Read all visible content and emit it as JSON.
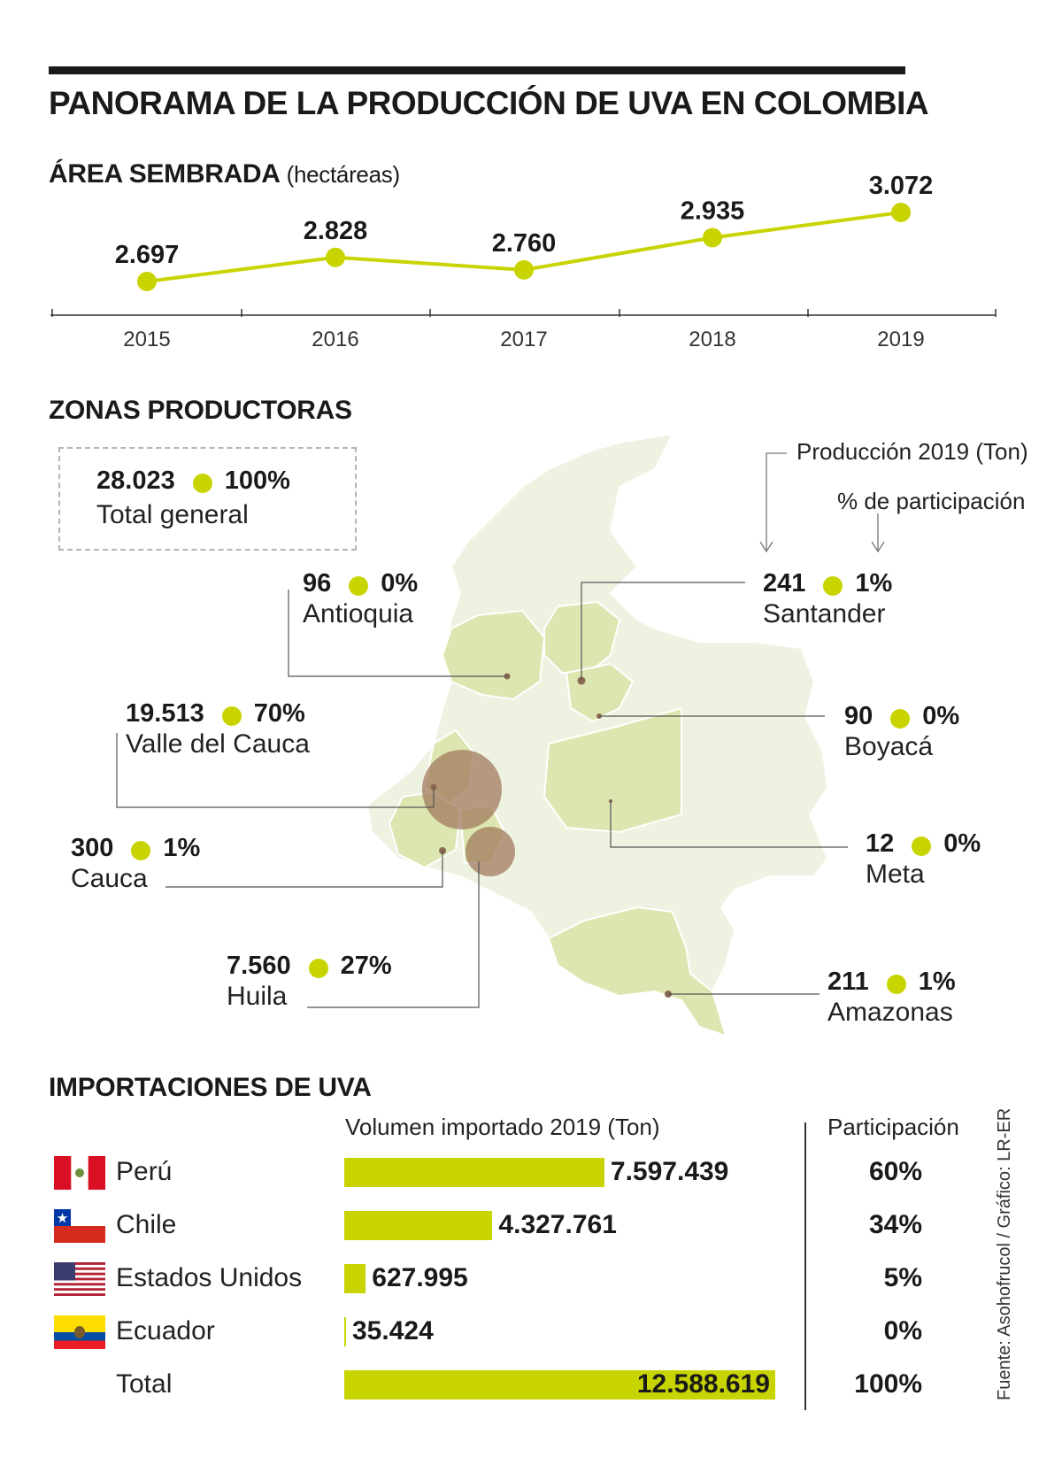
{
  "title": "PANORAMA DE LA PRODUCCIÓN DE UVA EN COLOMBIA",
  "area": {
    "title": "ÁREA SEMBRADA",
    "unit": "(hectáreas)"
  },
  "zonas": {
    "title": "ZONAS PRODUCTORAS",
    "legend_production": "Producción 2019 (Ton)",
    "legend_share": "% de participación",
    "total": {
      "value": "28.023",
      "pct": "100%",
      "label": "Total general"
    },
    "items": [
      {
        "name": "Antioquia",
        "value": "96",
        "pct": "0%"
      },
      {
        "name": "Santander",
        "value": "241",
        "pct": "1%"
      },
      {
        "name": "Valle del Cauca",
        "value": "19.513",
        "pct": "70%"
      },
      {
        "name": "Boyacá",
        "value": "90",
        "pct": "0%"
      },
      {
        "name": "Cauca",
        "value": "300",
        "pct": "1%"
      },
      {
        "name": "Meta",
        "value": "12",
        "pct": "0%"
      },
      {
        "name": "Huila",
        "value": "7.560",
        "pct": "27%"
      },
      {
        "name": "Amazonas",
        "value": "211",
        "pct": "1%"
      }
    ]
  },
  "imports": {
    "title": "IMPORTACIONES DE UVA",
    "col_volume": "Volumen importado 2019 (Ton)",
    "col_share": "Participación",
    "total_label": "Total",
    "total_value": "12.588.619",
    "total_pct": "100%"
  },
  "source": "Fuente: Asohofrucol / Gráfico: LR-ER",
  "colors": {
    "accent": "#c8d400",
    "bubble": "#a07a5f",
    "map_land": "#eef2e0",
    "map_highlight": "#dde6b0"
  },
  "chart_data": [
    {
      "type": "line",
      "title": "ÁREA SEMBRADA",
      "ylabel": "(hectáreas)",
      "x": [
        "2015",
        "2016",
        "2017",
        "2018",
        "2019"
      ],
      "values": [
        2697,
        2828,
        2760,
        2935,
        3072
      ],
      "labels": [
        "2.697",
        "2.828",
        "2.760",
        "2.935",
        "3.072"
      ],
      "ylim": [
        2600,
        3100
      ],
      "grid": false
    },
    {
      "type": "bar",
      "title": "IMPORTACIONES DE UVA",
      "xlabel": "Volumen importado 2019 (Ton)",
      "categories": [
        "Perú",
        "Chile",
        "Estados Unidos",
        "Ecuador"
      ],
      "values": [
        7597439,
        4327761,
        627995,
        35424
      ],
      "labels": [
        "7.597.439",
        "4.327.761",
        "627.995",
        "35.424"
      ],
      "shares": [
        "60%",
        "34%",
        "5%",
        "0%"
      ],
      "flags": [
        "peru-flag-icon",
        "chile-flag-icon",
        "usa-flag-icon",
        "ecuador-flag-icon"
      ],
      "total": 12588619,
      "xlim": [
        0,
        12588619
      ]
    }
  ]
}
